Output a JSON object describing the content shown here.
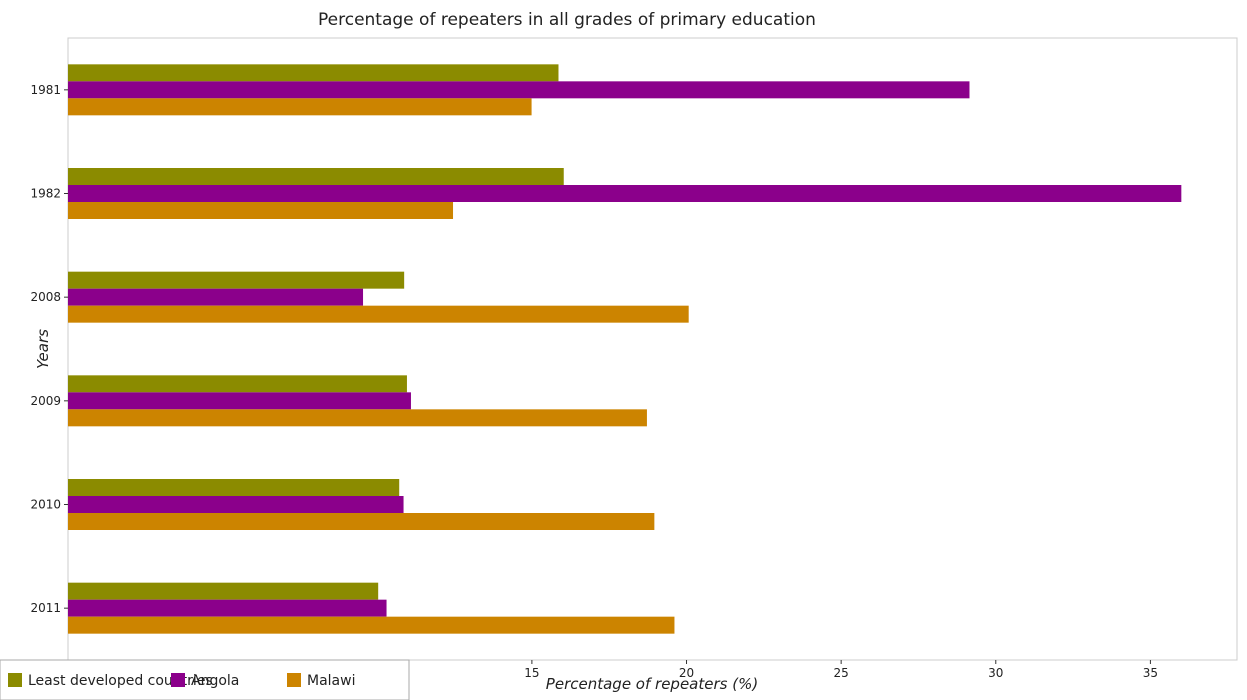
{
  "chart_data": {
    "type": "bar",
    "orientation": "horizontal",
    "title": "Percentage of repeaters in all grades of primary education",
    "xlabel": "Percentage of repeaters (%)",
    "ylabel": "Years",
    "categories": [
      "1981",
      "1982",
      "2008",
      "2009",
      "2010",
      "2011"
    ],
    "xlim": [
      0,
      37.8
    ],
    "xticks": [
      0,
      5,
      10,
      15,
      20,
      25,
      30,
      35
    ],
    "grid": false,
    "legend_position": "bottom-left",
    "series": [
      {
        "name": "Least developed countries",
        "color": "#8b8b00",
        "values": [
          15.86,
          16.03,
          10.87,
          10.96,
          10.71,
          10.03
        ]
      },
      {
        "name": "Angola",
        "color": "#8b008b",
        "values": [
          29.15,
          36.0,
          9.54,
          11.09,
          10.85,
          10.3
        ]
      },
      {
        "name": "Malawi",
        "color": "#cc8400",
        "values": [
          14.99,
          12.45,
          20.07,
          18.72,
          18.96,
          19.61
        ]
      }
    ]
  }
}
